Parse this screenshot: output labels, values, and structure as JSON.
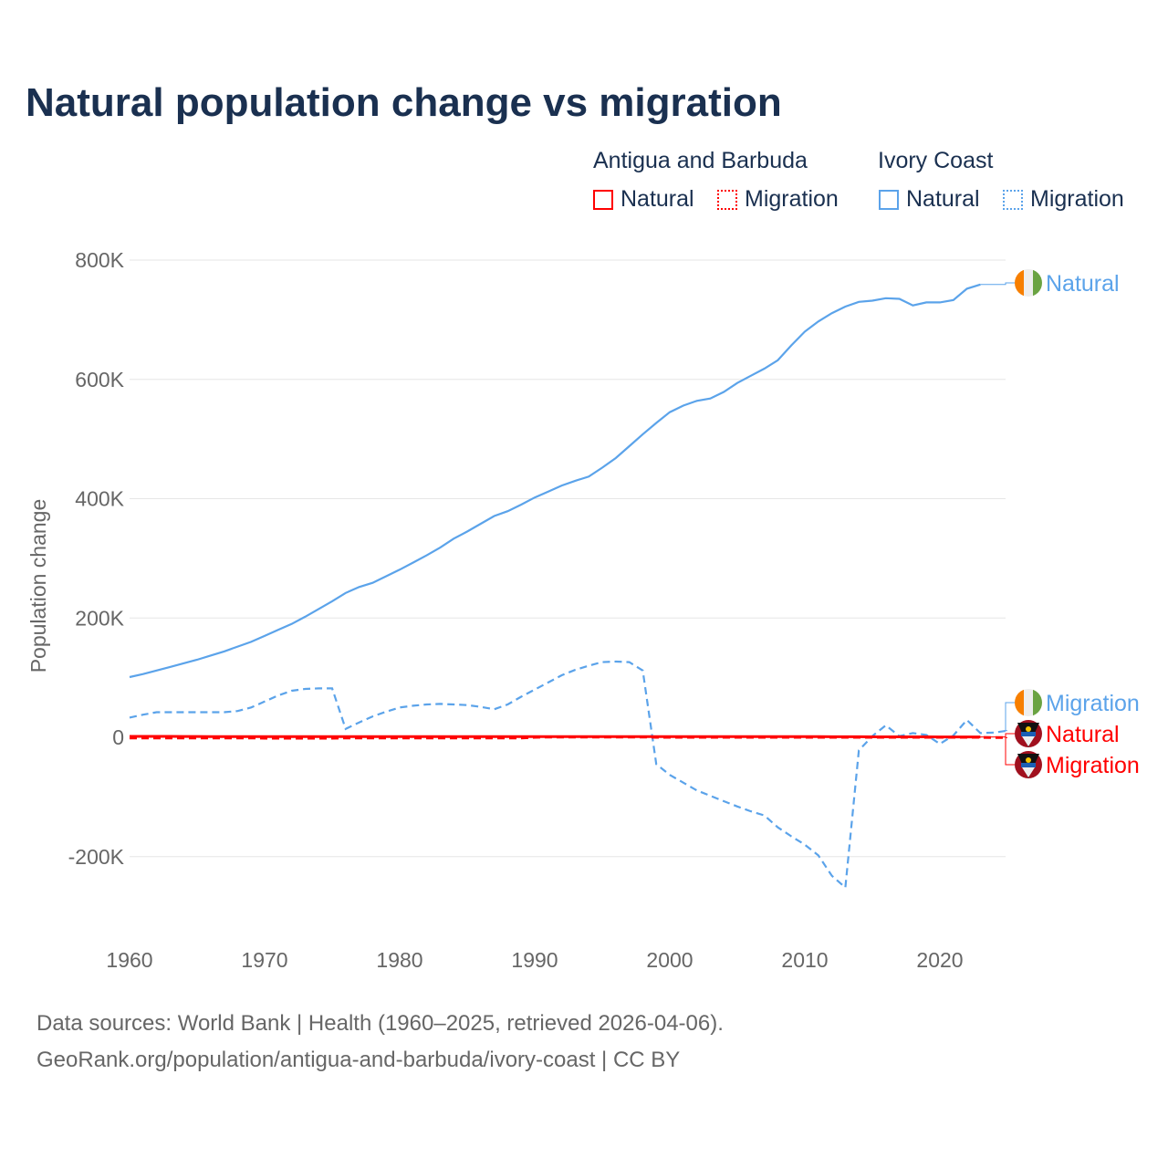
{
  "title": "Natural population change vs migration",
  "legend": {
    "group1": "Antigua and Barbuda",
    "group2": "Ivory Coast",
    "natural": "Natural",
    "migration": "Migration"
  },
  "footer": {
    "line1": "Data sources: World Bank | Health (1960–2025, retrieved 2026-04-06).",
    "line2": "GeoRank.org/population/antigua-and-barbuda/ivory-coast | CC BY"
  },
  "colors": {
    "antigua": "#ff0000",
    "ivory": "#5ba3ea"
  },
  "chart_data": {
    "type": "line",
    "title": "Natural population change vs migration",
    "ylabel": "Population change",
    "xlabel": "",
    "ylim": [
      -300000,
      820000
    ],
    "xlim": [
      1960,
      2025
    ],
    "yticks": [
      {
        "v": 800000,
        "l": "800K"
      },
      {
        "v": 600000,
        "l": "600K"
      },
      {
        "v": 400000,
        "l": "400K"
      },
      {
        "v": 200000,
        "l": "200K"
      },
      {
        "v": 0,
        "l": "0"
      },
      {
        "v": -200000,
        "l": "-200K"
      }
    ],
    "xticks": [
      1960,
      1970,
      1980,
      1990,
      2000,
      2010,
      2020
    ],
    "series": [
      {
        "name": "Ivory Coast Natural",
        "label": "Natural",
        "country": "Ivory Coast",
        "color": "#5ba3ea",
        "dash": false,
        "start": 1960,
        "values": [
          101000,
          106000,
          112000,
          118000,
          124000,
          130000,
          137000,
          144000,
          152000,
          160000,
          170000,
          180000,
          190000,
          202000,
          215000,
          228000,
          242000,
          252000,
          259000,
          270000,
          281000,
          293000,
          305000,
          318000,
          333000,
          345000,
          358000,
          371000,
          379000,
          390000,
          402000,
          412000,
          422000,
          430000,
          437000,
          452000,
          468000,
          488000,
          508000,
          527000,
          545000,
          556000,
          564000,
          568000,
          579000,
          594000,
          606000,
          618000,
          632000,
          657000,
          680000,
          697000,
          711000,
          722000,
          730000,
          732000,
          736000,
          735000,
          724000,
          729000,
          729000,
          733000,
          752000,
          759000
        ]
      },
      {
        "name": "Ivory Coast Migration",
        "label": "Migration",
        "country": "Ivory Coast",
        "color": "#5ba3ea",
        "dash": true,
        "start": 1960,
        "values": [
          33000,
          38000,
          42000,
          42000,
          42000,
          42000,
          42000,
          42000,
          44000,
          50000,
          60000,
          70000,
          78000,
          81000,
          82000,
          82000,
          14000,
          25000,
          35000,
          43000,
          50000,
          53000,
          55000,
          56000,
          55000,
          54000,
          51000,
          47000,
          55000,
          68000,
          80000,
          92000,
          104000,
          113000,
          120000,
          126000,
          127000,
          126000,
          112000,
          -45000,
          -63000,
          -76000,
          -89000,
          -98000,
          -107000,
          -116000,
          -124000,
          -131000,
          -151000,
          -166000,
          -180000,
          -198000,
          -232000,
          -252000,
          -22000,
          2000,
          20000,
          2000,
          7000,
          4000,
          -11000,
          3000,
          29000,
          7000,
          8000,
          11000
        ]
      },
      {
        "name": "Antigua and Barbuda Natural",
        "label": "Natural",
        "country": "Antigua and Barbuda",
        "color": "#ff0000",
        "dash": false,
        "start": 1960,
        "values": [
          1500,
          1500,
          1500,
          1500,
          1400,
          1400,
          1300,
          1300,
          1200,
          1200,
          1100,
          1100,
          1100,
          1000,
          1000,
          1000,
          1000,
          1000,
          1000,
          1000,
          1000,
          1000,
          1000,
          1000,
          1000,
          1000,
          1000,
          1000,
          1000,
          1000,
          1000,
          1000,
          1000,
          1100,
          1100,
          1100,
          1100,
          1100,
          1100,
          1100,
          1100,
          1100,
          1000,
          1000,
          1000,
          1000,
          1000,
          1000,
          1000,
          1000,
          1000,
          1000,
          900,
          900,
          900,
          800,
          800,
          800,
          700,
          700,
          600,
          600,
          600,
          600
        ]
      },
      {
        "name": "Antigua and Barbuda Migration",
        "label": "Migration",
        "country": "Antigua and Barbuda",
        "color": "#ff0000",
        "dash": true,
        "start": 1960,
        "values": [
          -1000,
          -1000,
          -1000,
          -1000,
          -1000,
          -1000,
          -1000,
          -1000,
          -1000,
          -1000,
          -1500,
          -1500,
          -1500,
          -1500,
          -1500,
          -1500,
          -1000,
          -1000,
          -1000,
          -1000,
          -1000,
          -1000,
          -1000,
          -1000,
          -1000,
          -1000,
          -1000,
          -1000,
          -1000,
          -1000,
          0,
          500,
          500,
          500,
          500,
          500,
          500,
          500,
          500,
          0,
          0,
          0,
          0,
          0,
          0,
          0,
          0,
          0,
          0,
          0,
          0,
          0,
          0,
          0,
          0,
          0,
          0,
          0,
          0,
          0,
          0,
          0,
          0,
          0,
          -500,
          -500
        ]
      }
    ]
  }
}
